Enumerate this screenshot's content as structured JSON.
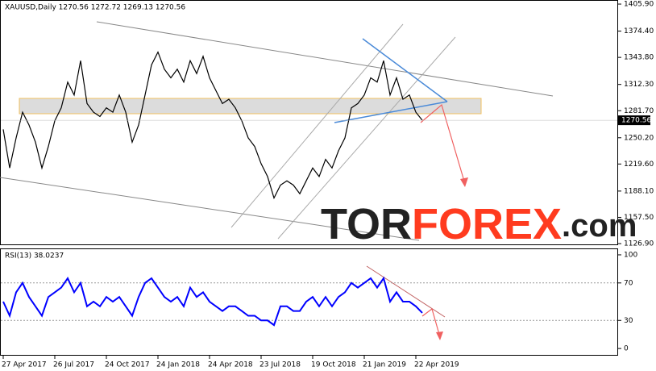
{
  "chart_data": [
    {
      "type": "line",
      "title": "XAUUSD,Daily  1270.56 1272.72 1269.13 1270.56",
      "series": [
        {
          "color": "#000000",
          "values": [
            1260,
            1215,
            1250,
            1280,
            1265,
            1245,
            1215,
            1240,
            1270,
            1285,
            1315,
            1300,
            1340,
            1290,
            1280,
            1275,
            1285,
            1280,
            1300,
            1280,
            1245,
            1265,
            1300,
            1335,
            1350,
            1330,
            1320,
            1330,
            1315,
            1340,
            1325,
            1345,
            1320,
            1305,
            1290,
            1295,
            1285,
            1270,
            1250,
            1240,
            1220,
            1205,
            1180,
            1195,
            1200,
            1195,
            1185,
            1200,
            1215,
            1205,
            1225,
            1215,
            1235,
            1250,
            1285,
            1290,
            1300,
            1320,
            1315,
            1340,
            1300,
            1320,
            1295,
            1300,
            1280,
            1270.56
          ]
        }
      ],
      "ylim": [
        1126,
        1409.7
      ],
      "yticks": [
        {
          "value": 1405.9,
          "label": "1405.90"
        },
        {
          "value": 1374.4,
          "label": "1374.40"
        },
        {
          "value": 1343.8,
          "label": "1343.80"
        },
        {
          "value": 1312.3,
          "label": "1312.30"
        },
        {
          "value": 1281.7,
          "label": "1281.70"
        },
        {
          "value": 1250.2,
          "label": "1250.20"
        },
        {
          "value": 1219.6,
          "label": "1219.60"
        },
        {
          "value": 1188.1,
          "label": "1188.10"
        },
        {
          "value": 1157.5,
          "label": "1157.50"
        },
        {
          "value": 1126.9,
          "label": "1126.90"
        }
      ],
      "watermark": [
        "TOR",
        "FOREX",
        ".com"
      ]
    },
    {
      "type": "line",
      "title": "RSI(13) 38.0237",
      "categories": [
        "27 Apr 2017",
        null,
        null,
        null,
        null,
        null,
        null,
        null,
        "26 Jul 2017",
        null,
        null,
        null,
        null,
        null,
        null,
        null,
        "24 Oct 2017",
        null,
        null,
        null,
        null,
        null,
        null,
        null,
        "24 Jan 2018",
        null,
        null,
        null,
        null,
        null,
        null,
        null,
        "24 Apr 2018",
        null,
        null,
        null,
        null,
        null,
        null,
        null,
        "23 Jul 2018",
        null,
        null,
        null,
        null,
        null,
        null,
        null,
        "19 Oct 2018",
        null,
        null,
        null,
        null,
        null,
        null,
        null,
        "21 Jan 2019",
        null,
        null,
        null,
        null,
        null,
        null,
        null,
        "22 Apr 2019",
        null
      ],
      "series": [
        {
          "color": "#0000ff",
          "values": [
            50,
            35,
            60,
            70,
            55,
            45,
            35,
            55,
            60,
            65,
            75,
            60,
            70,
            45,
            50,
            45,
            55,
            50,
            55,
            45,
            35,
            55,
            70,
            75,
            65,
            55,
            50,
            55,
            45,
            65,
            55,
            60,
            50,
            45,
            40,
            45,
            45,
            40,
            35,
            35,
            30,
            30,
            25,
            45,
            45,
            40,
            40,
            50,
            55,
            45,
            55,
            45,
            55,
            60,
            70,
            65,
            70,
            75,
            65,
            75,
            50,
            60,
            50,
            50,
            45,
            38.02
          ]
        }
      ],
      "ylim": [
        -6.8,
        106
      ],
      "yticks": [
        0,
        30,
        70,
        100
      ]
    }
  ]
}
